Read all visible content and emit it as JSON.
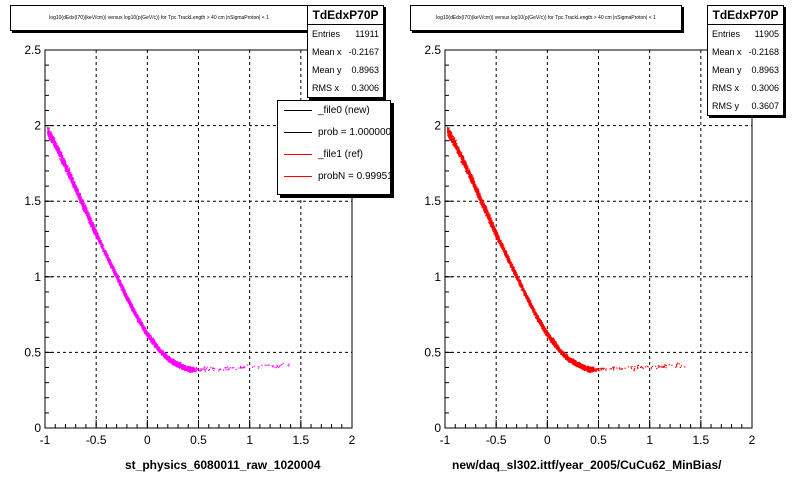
{
  "panels": [
    {
      "title": "log10(dEdx(I70)(keV/cm)) versus log10(p(GeV/c)) for Tpc.TrackLength > 40 cm |nSigmaProton| < 1",
      "stats": {
        "name": "TdEdxP70P",
        "rows": [
          {
            "label": "Entries",
            "value": "11911"
          },
          {
            "label": "Mean x",
            "value": "-0.2167"
          },
          {
            "label": "Mean y",
            "value": "0.8963"
          },
          {
            "label": "RMS x",
            "value": "0.3006"
          }
        ]
      },
      "xtitle": "st_physics_6080011_raw_1020004"
    },
    {
      "title": "log10(dEdx(I70)(keV/cm)) versus log10(p(GeV/c)) for Tpc.TrackLength > 40 cm |nSigmaProton| < 1",
      "stats": {
        "name": "TdEdxP70P",
        "rows": [
          {
            "label": "Entries",
            "value": "11905"
          },
          {
            "label": "Mean x",
            "value": "-0.2168"
          },
          {
            "label": "Mean y",
            "value": "0.8963"
          },
          {
            "label": "RMS x",
            "value": "0.3006"
          },
          {
            "label": "RMS y",
            "value": "0.3607"
          }
        ]
      },
      "xtitle": "new/daq_sl302.ittf/year_2005/CuCu62_MinBias/"
    }
  ],
  "legend": [
    {
      "label": "_file0 (new)",
      "color": "#000000"
    },
    {
      "label": "prob = 1.000000",
      "color": "#000000"
    },
    {
      "label": "_file1 (ref)",
      "color": "#ff0000"
    },
    {
      "label": "probN = 0.999510",
      "color": "#ff0000"
    }
  ],
  "footer": "",
  "chart_data": [
    {
      "type": "scatter",
      "title": "log10(dEdx(I70)(keV/cm)) versus log10(p(GeV/c)) for Tpc.TrackLength > 40 cm |nSigmaProton| < 1",
      "xlabel": "st_physics_6080011_raw_1020004",
      "ylabel": "",
      "xlim": [
        -1,
        2
      ],
      "ylim": [
        0,
        2.5
      ],
      "x_ticks": [
        "-1",
        "-0.5",
        "0",
        "0.5",
        "1",
        "1.5",
        "2"
      ],
      "y_ticks": [
        "0",
        "0.5",
        "1",
        "1.5",
        "2",
        "2.5"
      ],
      "grid": true,
      "color": "#ff00ff",
      "band": {
        "x": [
          -0.98,
          -0.9,
          -0.8,
          -0.7,
          -0.6,
          -0.5,
          -0.4,
          -0.3,
          -0.2,
          -0.1,
          0.0,
          0.1,
          0.2,
          0.3,
          0.4,
          0.45
        ],
        "y": [
          1.97,
          1.87,
          1.73,
          1.58,
          1.43,
          1.28,
          1.14,
          1.0,
          0.86,
          0.73,
          0.62,
          0.53,
          0.46,
          0.42,
          0.39,
          0.39
        ]
      },
      "tail": {
        "x": [
          0.45,
          1.4
        ],
        "y": [
          0.39,
          0.42
        ]
      }
    },
    {
      "type": "scatter",
      "title": "log10(dEdx(I70)(keV/cm)) versus log10(p(GeV/c)) for Tpc.TrackLength > 40 cm |nSigmaProton| < 1",
      "xlabel": "new/daq_sl302.ittf/year_2005/CuCu62_MinBias/",
      "ylabel": "",
      "xlim": [
        -1,
        2
      ],
      "ylim": [
        0,
        2.5
      ],
      "x_ticks": [
        "-1",
        "-0.5",
        "0",
        "0.5",
        "1",
        "1.5",
        "2"
      ],
      "y_ticks": [
        "0",
        "0.5",
        "1",
        "1.5",
        "2",
        "2.5"
      ],
      "grid": true,
      "color": "#ff0000",
      "band": {
        "x": [
          -0.98,
          -0.9,
          -0.8,
          -0.7,
          -0.6,
          -0.5,
          -0.4,
          -0.3,
          -0.2,
          -0.1,
          0.0,
          0.1,
          0.2,
          0.3,
          0.4,
          0.45
        ],
        "y": [
          1.97,
          1.87,
          1.73,
          1.58,
          1.43,
          1.28,
          1.14,
          1.0,
          0.86,
          0.73,
          0.62,
          0.53,
          0.46,
          0.42,
          0.39,
          0.39
        ]
      },
      "tail": {
        "x": [
          0.45,
          1.4
        ],
        "y": [
          0.39,
          0.42
        ]
      }
    }
  ]
}
